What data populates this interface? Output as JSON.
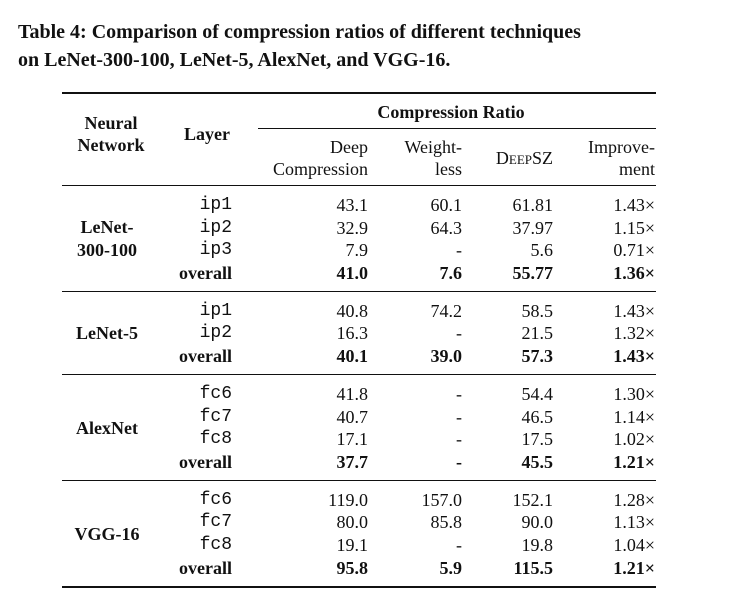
{
  "caption": [
    "Table 4: Comparison of compression ratios of different techniques",
    "on LeNet-300-100, LeNet-5, AlexNet, and VGG-16."
  ],
  "table": {
    "header": {
      "network": [
        "Neural",
        "Network"
      ],
      "layer": "Layer",
      "group": "Compression Ratio",
      "columns": [
        [
          "Deep",
          "Compression"
        ],
        [
          "Weight-",
          "less"
        ],
        [
          "DeepSZ"
        ],
        [
          "Improve-",
          "ment"
        ]
      ]
    },
    "groups": [
      {
        "name": [
          "LeNet-",
          "300-100"
        ],
        "rows": [
          [
            "ip1",
            "43.1",
            "60.1",
            "61.81",
            "1.43×"
          ],
          [
            "ip2",
            "32.9",
            "64.3",
            "37.97",
            "1.15×"
          ],
          [
            "ip3",
            "7.9",
            "-",
            "5.6",
            "0.71×"
          ],
          [
            "overall",
            "41.0",
            "7.6",
            "55.77",
            "1.36×"
          ]
        ]
      },
      {
        "name": [
          "LeNet-5"
        ],
        "rows": [
          [
            "ip1",
            "40.8",
            "74.2",
            "58.5",
            "1.43×"
          ],
          [
            "ip2",
            "16.3",
            "-",
            "21.5",
            "1.32×"
          ],
          [
            "overall",
            "40.1",
            "39.0",
            "57.3",
            "1.43×"
          ]
        ]
      },
      {
        "name": [
          "AlexNet"
        ],
        "rows": [
          [
            "fc6",
            "41.8",
            "-",
            "54.4",
            "1.30×"
          ],
          [
            "fc7",
            "40.7",
            "-",
            "46.5",
            "1.14×"
          ],
          [
            "fc8",
            "17.1",
            "-",
            "17.5",
            "1.02×"
          ],
          [
            "overall",
            "37.7",
            "-",
            "45.5",
            "1.21×"
          ]
        ]
      },
      {
        "name": [
          "VGG-16"
        ],
        "rows": [
          [
            "fc6",
            "119.0",
            "157.0",
            "152.1",
            "1.28×"
          ],
          [
            "fc7",
            "80.0",
            "85.8",
            "90.0",
            "1.13×"
          ],
          [
            "fc8",
            "19.1",
            "-",
            "19.8",
            "1.04×"
          ],
          [
            "overall",
            "95.8",
            "5.9",
            "115.5",
            "1.21×"
          ]
        ]
      }
    ]
  }
}
